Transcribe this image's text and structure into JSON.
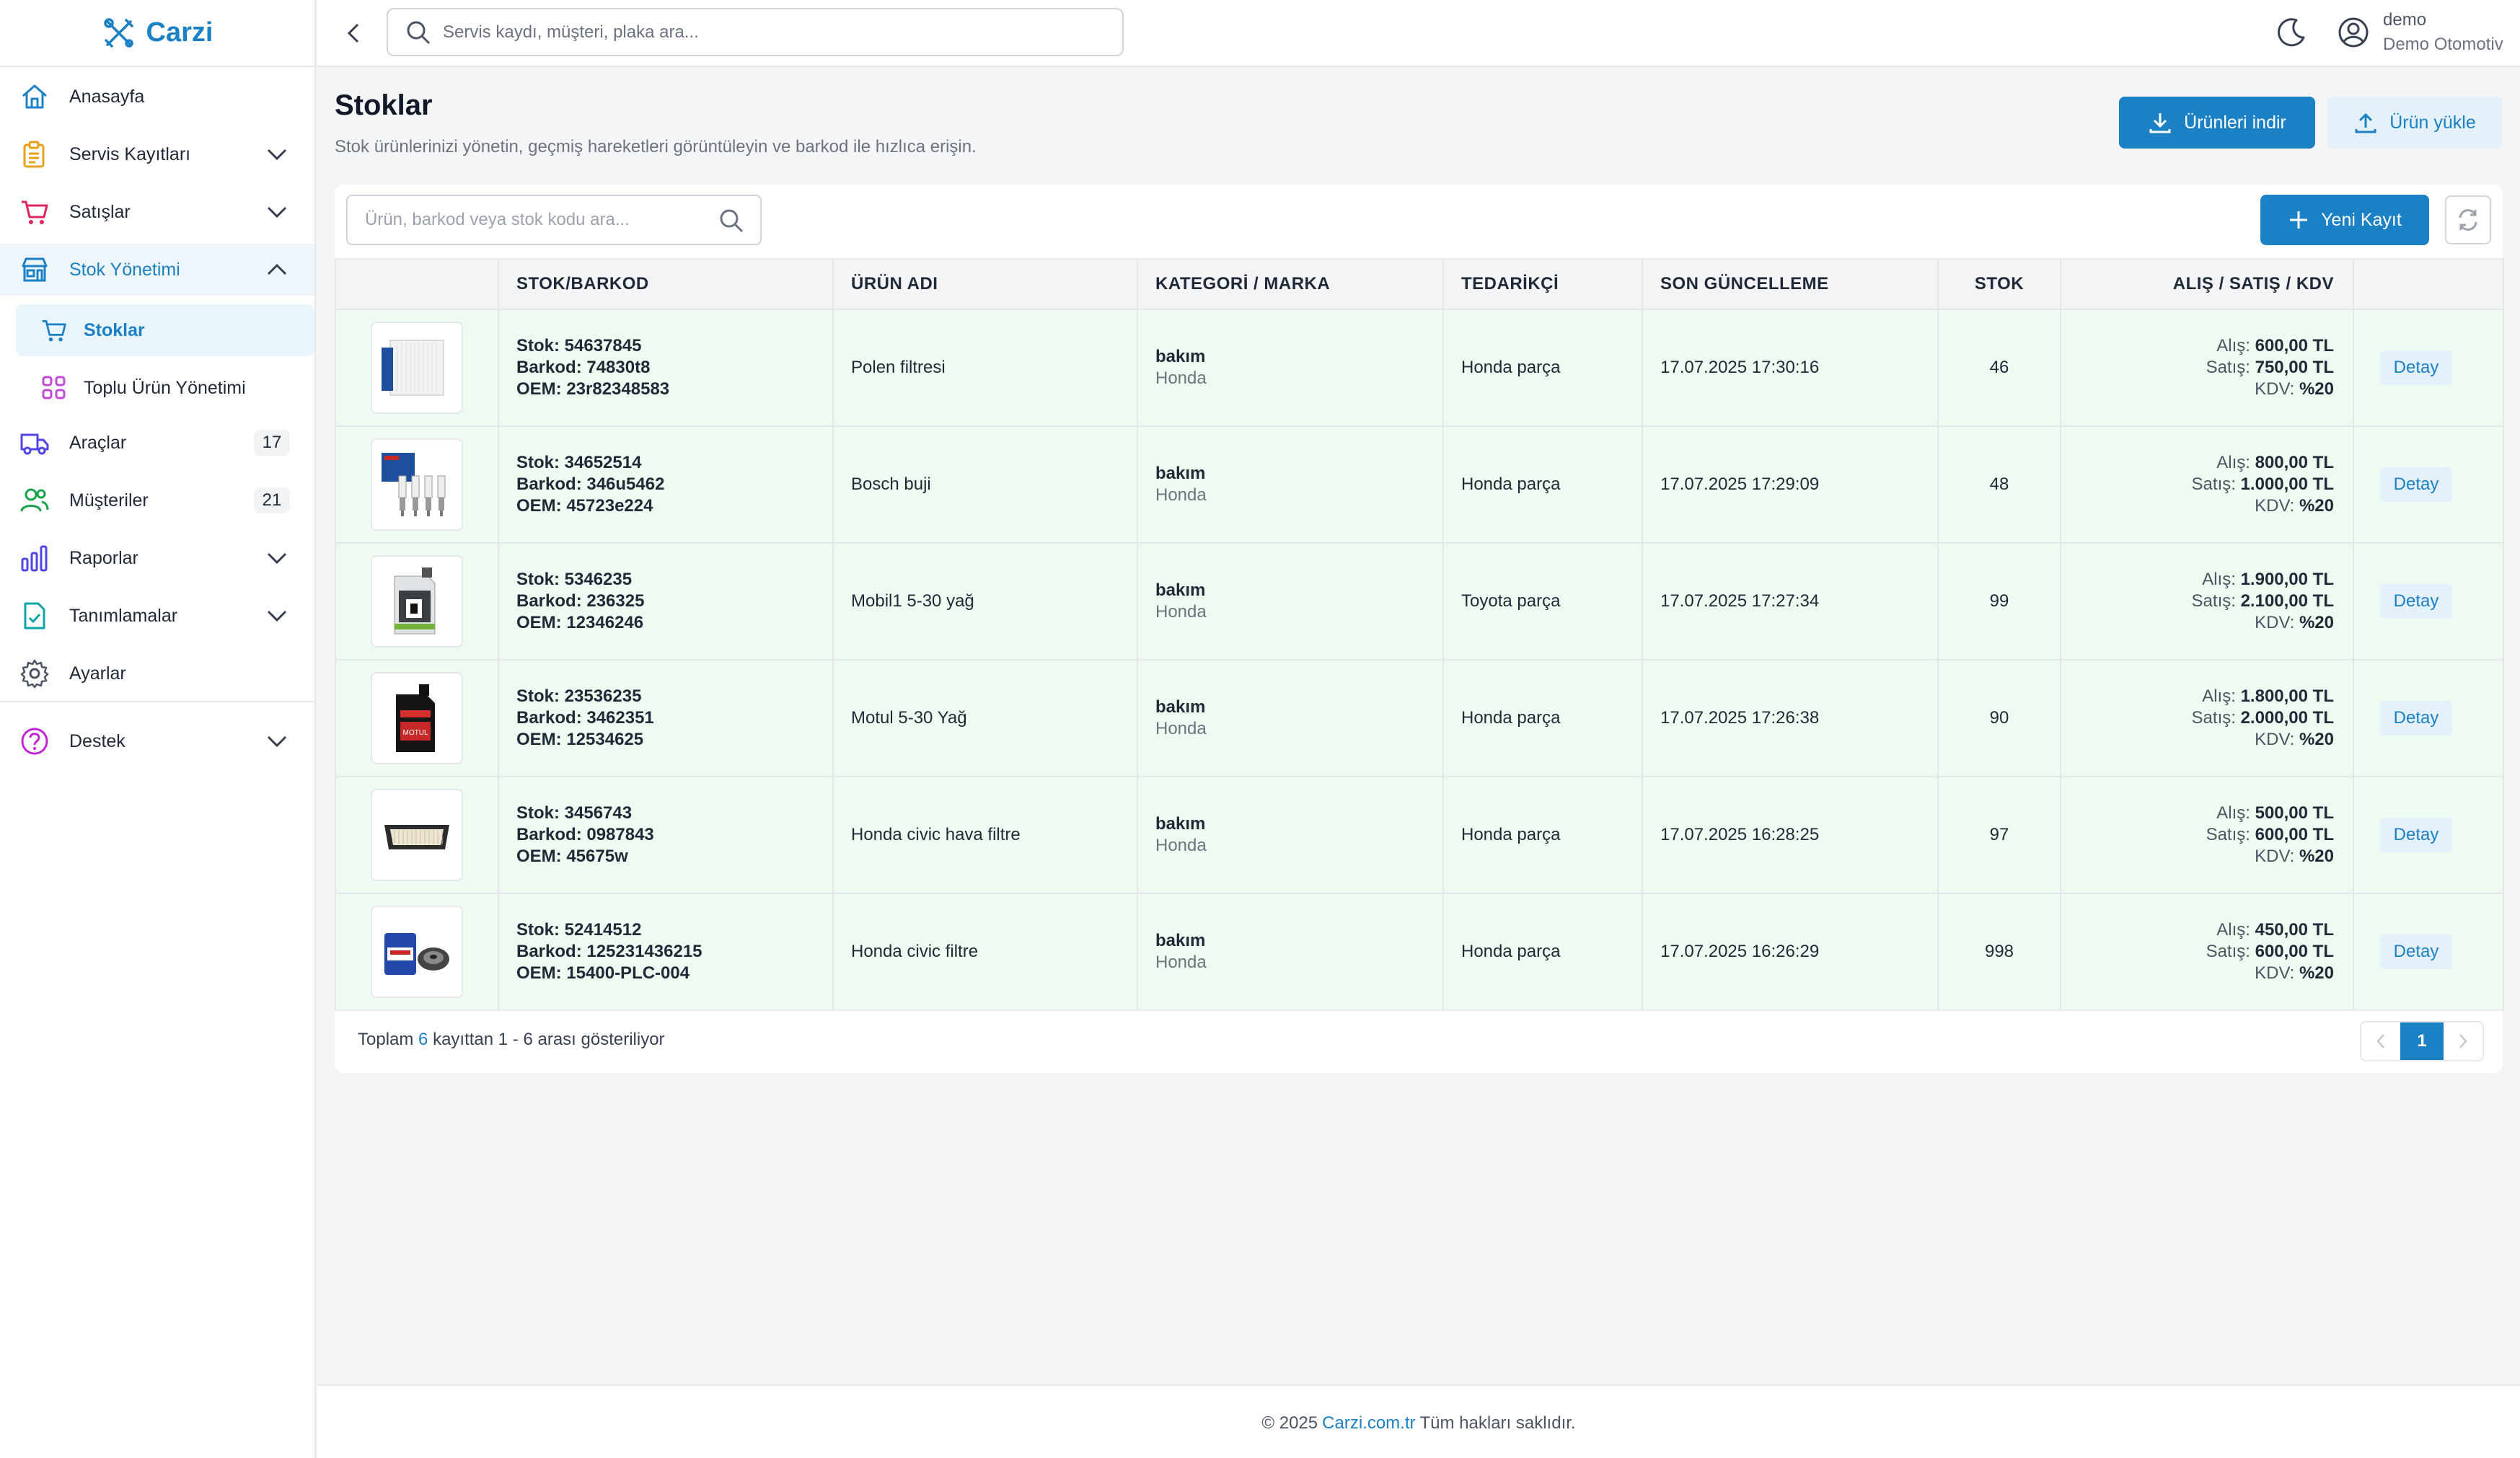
{
  "brand": {
    "name": "Carzi"
  },
  "sidebar": {
    "items": [
      {
        "label": "Anasayfa"
      },
      {
        "label": "Servis Kayıtları"
      },
      {
        "label": "Satışlar"
      },
      {
        "label": "Stok Yönetimi"
      },
      {
        "label": "Stoklar"
      },
      {
        "label": "Toplu Ürün Yönetimi"
      },
      {
        "label": "Araçlar",
        "badge": "17"
      },
      {
        "label": "Müşteriler",
        "badge": "21"
      },
      {
        "label": "Raporlar"
      },
      {
        "label": "Tanımlamalar"
      },
      {
        "label": "Ayarlar"
      },
      {
        "label": "Destek"
      }
    ]
  },
  "topbar": {
    "search_placeholder": "Servis kaydı, müşteri, plaka ara...",
    "user_name": "demo",
    "user_org": "Demo Otomotiv"
  },
  "page": {
    "title": "Stoklar",
    "subtitle": "Stok ürünlerinizi yönetin, geçmiş hareketleri görüntüleyin ve barkod ile hızlıca erişin.",
    "download_label": "Ürünleri indir",
    "upload_label": "Ürün yükle"
  },
  "toolbar": {
    "search_placeholder": "Ürün, barkod veya stok kodu ara...",
    "new_label": "Yeni Kayıt"
  },
  "table": {
    "headers": [
      "",
      "STOK/BARKOD",
      "ÜRÜN ADI",
      "KATEGORİ / MARKA",
      "TEDARİKÇİ",
      "SON GÜNCELLEME",
      "STOK",
      "ALIŞ / SATIŞ / KDV",
      ""
    ],
    "rows": [
      {
        "image": "cabin-filter",
        "stock": "Stok: 54637845",
        "barcode": "Barkod: 74830t8",
        "oem": "OEM: 23r82348583",
        "name": "Polen filtresi",
        "category": "bakım",
        "brand": "Honda",
        "supplier": "Honda parça",
        "updated": "17.07.2025 17:30:16",
        "qty": "46",
        "buy_label": "Alış:",
        "buy": "600,00 TL",
        "sell_label": "Satış:",
        "sell": "750,00 TL",
        "vat_label": "KDV:",
        "vat": "%20",
        "action": "Detay"
      },
      {
        "image": "spark-plugs",
        "stock": "Stok: 34652514",
        "barcode": "Barkod: 346u5462",
        "oem": "OEM: 45723e224",
        "name": "Bosch buji",
        "category": "bakım",
        "brand": "Honda",
        "supplier": "Honda parça",
        "updated": "17.07.2025 17:29:09",
        "qty": "48",
        "buy_label": "Alış:",
        "buy": "800,00 TL",
        "sell_label": "Satış:",
        "sell": "1.000,00 TL",
        "vat_label": "KDV:",
        "vat": "%20",
        "action": "Detay"
      },
      {
        "image": "oil-can-green",
        "stock": "Stok: 5346235",
        "barcode": "Barkod: 236325",
        "oem": "OEM: 12346246",
        "name": "Mobil1 5-30 yağ",
        "category": "bakım",
        "brand": "Honda",
        "supplier": "Toyota parça",
        "updated": "17.07.2025 17:27:34",
        "qty": "99",
        "buy_label": "Alış:",
        "buy": "1.900,00 TL",
        "sell_label": "Satış:",
        "sell": "2.100,00 TL",
        "vat_label": "KDV:",
        "vat": "%20",
        "action": "Detay"
      },
      {
        "image": "oil-can-black",
        "stock": "Stok: 23536235",
        "barcode": "Barkod: 3462351",
        "oem": "OEM: 12534625",
        "name": "Motul 5-30 Yağ",
        "category": "bakım",
        "brand": "Honda",
        "supplier": "Honda parça",
        "updated": "17.07.2025 17:26:38",
        "qty": "90",
        "buy_label": "Alış:",
        "buy": "1.800,00 TL",
        "sell_label": "Satış:",
        "sell": "2.000,00 TL",
        "vat_label": "KDV:",
        "vat": "%20",
        "action": "Detay"
      },
      {
        "image": "air-filter",
        "stock": "Stok: 3456743",
        "barcode": "Barkod: 0987843",
        "oem": "OEM: 45675w",
        "name": "Honda civic hava filtre",
        "category": "bakım",
        "brand": "Honda",
        "supplier": "Honda parça",
        "updated": "17.07.2025 16:28:25",
        "qty": "97",
        "buy_label": "Alış:",
        "buy": "500,00 TL",
        "sell_label": "Satış:",
        "sell": "600,00 TL",
        "vat_label": "KDV:",
        "vat": "%20",
        "action": "Detay"
      },
      {
        "image": "oil-filter",
        "stock": "Stok: 52414512",
        "barcode": "Barkod: 125231436215",
        "oem": "OEM: 15400-PLC-004",
        "name": "Honda civic filtre",
        "category": "bakım",
        "brand": "Honda",
        "supplier": "Honda parça",
        "updated": "17.07.2025 16:26:29",
        "qty": "998",
        "buy_label": "Alış:",
        "buy": "450,00 TL",
        "sell_label": "Satış:",
        "sell": "600,00 TL",
        "vat_label": "KDV:",
        "vat": "%20",
        "action": "Detay"
      }
    ]
  },
  "pagination": {
    "prefix": "Toplam",
    "total": "6",
    "suffix": "kayıttan 1 - 6 arası gösteriliyor",
    "current_page": "1"
  },
  "footer": {
    "prefix": "© 2025",
    "link": "Carzi.com.tr",
    "suffix": "Tüm hakları saklıdır."
  },
  "colors": {
    "accent": "#1b80c4",
    "row_bg": "#effbf1"
  }
}
